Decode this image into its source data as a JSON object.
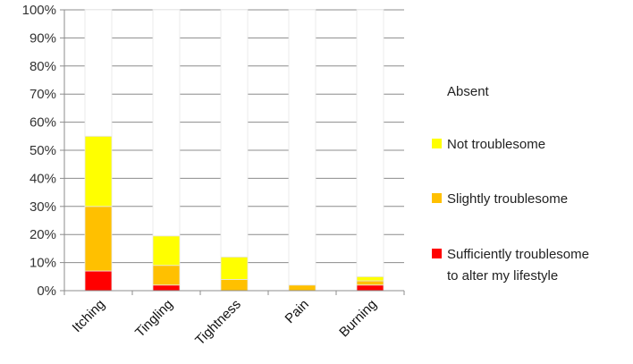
{
  "chart_data": {
    "type": "bar",
    "stacked": true,
    "categories": [
      "Itching",
      "Tingling",
      "Tightness",
      "Pain",
      "Burning"
    ],
    "series": [
      {
        "name": "Sufficiently troublesome to alter my lifestyle",
        "values": [
          7,
          2,
          0,
          0,
          2
        ],
        "color": "#ff0000"
      },
      {
        "name": "Slightly troublesome",
        "values": [
          23,
          7,
          4,
          2,
          1.5
        ],
        "color": "#ffc000"
      },
      {
        "name": "Not troublesome",
        "values": [
          25,
          10.5,
          8,
          0,
          1.5
        ],
        "color": "#ffff00"
      },
      {
        "name": "Absent",
        "values": [
          45,
          80.5,
          88,
          98,
          95
        ],
        "color": "#ffffff"
      }
    ],
    "legend": {
      "position": "right",
      "entries": [
        {
          "lines": [
            "Absent"
          ],
          "color": "#ffffff"
        },
        {
          "lines": [
            "Not troublesome"
          ],
          "color": "#ffff00"
        },
        {
          "lines": [
            "Slightly troublesome"
          ],
          "color": "#ffc000"
        },
        {
          "lines": [
            "Sufficiently troublesome",
            "to alter my lifestyle"
          ],
          "color": "#ff0000"
        }
      ]
    },
    "ylim": [
      0,
      100
    ],
    "yticks": [
      "0%",
      "10%",
      "20%",
      "30%",
      "40%",
      "50%",
      "60%",
      "70%",
      "80%",
      "90%",
      "100%"
    ],
    "grid": true,
    "title": "",
    "xlabel": "",
    "ylabel": ""
  }
}
